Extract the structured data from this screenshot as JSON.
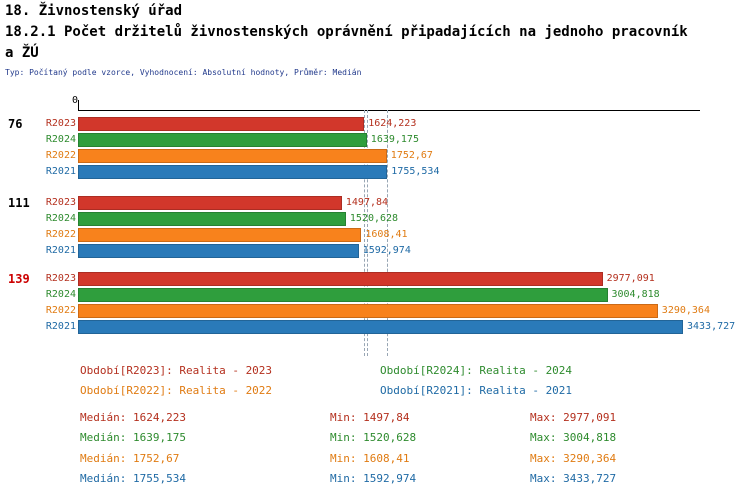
{
  "header": {
    "title_line1": "18. Živnostenský úřad",
    "title_line2": "18.2.1 Počet držitelů živnostenských oprávnění připadajících na jednoho pracovník",
    "title_line3": "a ŽÚ",
    "subtitle": "Typ: Počítaný podle vzorce, Vyhodnocení: Absolutní hodnoty, Průměr: Medián"
  },
  "chart_data": {
    "type": "bar",
    "orientation": "horizontal",
    "title": "18.2.1 Počet držitelů živnostenských oprávnění připadajících na jednoho pracovníka ŽÚ",
    "value_axis": {
      "origin_label": "0",
      "min": 0,
      "max": 3530
    },
    "grid": "vertical dashed median marker lines",
    "legend_position": "below chart",
    "series": [
      {
        "name": "R2023",
        "period": "Realita - 2023",
        "bar_color": "#d2372b",
        "text_color": "#b4301e",
        "median": 1624.223
      },
      {
        "name": "R2024",
        "period": "Realita - 2024",
        "bar_color": "#2f9e3d",
        "text_color": "#2e8b2e",
        "median": 1639.175
      },
      {
        "name": "R2022",
        "period": "Realita - 2022",
        "bar_color": "#f8821c",
        "text_color": "#e07b12",
        "median": 1752.67
      },
      {
        "name": "R2021",
        "period": "Realita - 2021",
        "bar_color": "#2a7ab9",
        "text_color": "#1f6aa5",
        "median": 1755.534
      }
    ],
    "groups": [
      {
        "label": "76",
        "label_color": "#000000",
        "values": [
          1624.223,
          1639.175,
          1752.67,
          1755.534
        ],
        "value_labels": [
          "1624,223",
          "1639,175",
          "1752,67",
          "1755,534"
        ]
      },
      {
        "label": "111",
        "label_color": "#000000",
        "values": [
          1497.84,
          1520.628,
          1608.41,
          1592.974
        ],
        "value_labels": [
          "1497,84",
          "1520,628",
          "1608,41",
          "1592,974"
        ]
      },
      {
        "label": "139",
        "label_color": "#cc0000",
        "values": [
          2977.091,
          3004.818,
          3290.364,
          3433.727
        ],
        "value_labels": [
          "2977,091",
          "3004,818",
          "3290,364",
          "3433,727"
        ]
      }
    ]
  },
  "legend": [
    {
      "series": "R2023",
      "label": "Období[R2023]: Realita - 2023",
      "color": "#b4301e",
      "col": 0,
      "row": 0
    },
    {
      "series": "R2024",
      "label": "Období[R2024]: Realita - 2024",
      "color": "#2e8b2e",
      "col": 1,
      "row": 0
    },
    {
      "series": "R2022",
      "label": "Období[R2022]: Realita - 2022",
      "color": "#e07b12",
      "col": 0,
      "row": 1
    },
    {
      "series": "R2021",
      "label": "Období[R2021]: Realita - 2021",
      "color": "#1f6aa5",
      "col": 1,
      "row": 1
    }
  ],
  "stats_labels": {
    "median": "Medián",
    "min": "Min",
    "max": "Max"
  },
  "stats": [
    {
      "series": "R2023",
      "color": "#b4301e",
      "median": "1624,223",
      "min": "1497,84",
      "max": "2977,091"
    },
    {
      "series": "R2024",
      "color": "#2e8b2e",
      "median": "1639,175",
      "min": "1520,628",
      "max": "3004,818"
    },
    {
      "series": "R2022",
      "color": "#e07b12",
      "median": "1752,67",
      "min": "1608,41",
      "max": "3290,364"
    },
    {
      "series": "R2021",
      "color": "#1f6aa5",
      "median": "1755,534",
      "min": "1592,974",
      "max": "3433,727"
    }
  ]
}
